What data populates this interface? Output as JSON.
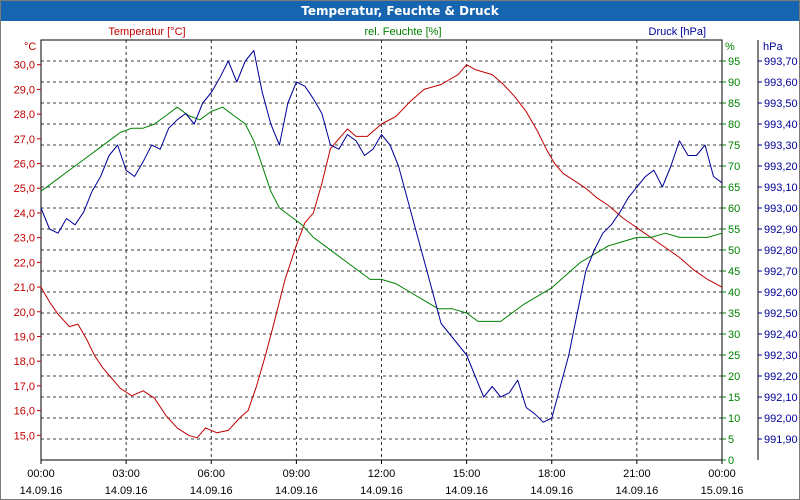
{
  "title": "Temperatur, Feuchte & Druck",
  "colors": {
    "title_bg": "#1565b0",
    "temperature": "#c00000",
    "humidity": "#008000",
    "pressure": "#000099",
    "grid": "#000000"
  },
  "chart_data": {
    "type": "line",
    "title": "Temperatur, Feuchte & Druck",
    "grid": true,
    "x_axis": {
      "range_hours": [
        0,
        24
      ],
      "ticks": [
        {
          "h": 0,
          "time": "00:00",
          "date": "14.09.16"
        },
        {
          "h": 3,
          "time": "03:00",
          "date": "14.09.16"
        },
        {
          "h": 6,
          "time": "06:00",
          "date": "14.09.16"
        },
        {
          "h": 9,
          "time": "09:00",
          "date": "14.09.16"
        },
        {
          "h": 12,
          "time": "12:00",
          "date": "14.09.16"
        },
        {
          "h": 15,
          "time": "15:00",
          "date": "14.09.16"
        },
        {
          "h": 18,
          "time": "18:00",
          "date": "14.09.16"
        },
        {
          "h": 21,
          "time": "21:00",
          "date": "14.09.16"
        },
        {
          "h": 24,
          "time": "00:00",
          "date": "15.09.16"
        }
      ]
    },
    "axes": {
      "temperature": {
        "label": "Temperatur [°C]",
        "unit": "°C",
        "range": [
          14.0,
          31.0
        ],
        "ticks": [
          "15,0",
          "16,0",
          "17,0",
          "18,0",
          "19,0",
          "20,0",
          "21,0",
          "22,0",
          "23,0",
          "24,0",
          "25,0",
          "26,0",
          "27,0",
          "28,0",
          "29,0",
          "30,0"
        ],
        "tick_values": [
          15,
          16,
          17,
          18,
          19,
          20,
          21,
          22,
          23,
          24,
          25,
          26,
          27,
          28,
          29,
          30
        ]
      },
      "humidity": {
        "label": "rel. Feuchte [%]",
        "unit": "%",
        "range": [
          0,
          100
        ],
        "ticks": [
          "0",
          "5",
          "10",
          "15",
          "20",
          "25",
          "30",
          "35",
          "40",
          "45",
          "50",
          "55",
          "60",
          "65",
          "70",
          "75",
          "80",
          "85",
          "90",
          "95"
        ],
        "tick_values": [
          0,
          5,
          10,
          15,
          20,
          25,
          30,
          35,
          40,
          45,
          50,
          55,
          60,
          65,
          70,
          75,
          80,
          85,
          90,
          95
        ]
      },
      "pressure": {
        "label": "Druck [hPa]",
        "unit": "hPa",
        "range": [
          991.8,
          993.8
        ],
        "ticks": [
          "991,90",
          "992,00",
          "992,10",
          "992,20",
          "992,30",
          "992,40",
          "992,50",
          "992,60",
          "992,70",
          "992,80",
          "992,90",
          "993,00",
          "993,10",
          "993,20",
          "993,30",
          "993,40",
          "993,50",
          "993,60",
          "993,70"
        ],
        "tick_values": [
          991.9,
          992.0,
          992.1,
          992.2,
          992.3,
          992.4,
          992.5,
          992.6,
          992.7,
          992.8,
          992.9,
          993.0,
          993.1,
          993.2,
          993.3,
          993.4,
          993.5,
          993.6,
          993.7
        ]
      }
    },
    "series": [
      {
        "name": "Temperatur [°C]",
        "axis": "temperature",
        "color": "#c00000",
        "x": [
          0,
          0.3,
          0.6,
          1.0,
          1.3,
          1.6,
          1.9,
          2.2,
          2.5,
          2.8,
          3.2,
          3.6,
          4.0,
          4.4,
          4.8,
          5.2,
          5.5,
          5.8,
          6.2,
          6.6,
          7.0,
          7.3,
          7.6,
          7.9,
          8.2,
          8.6,
          9.0,
          9.3,
          9.6,
          9.9,
          10.2,
          10.5,
          10.8,
          11.1,
          11.5,
          12.0,
          12.5,
          13.0,
          13.5,
          13.8,
          14.1,
          14.4,
          14.7,
          15.0,
          15.3,
          15.6,
          15.9,
          16.3,
          16.7,
          17.1,
          17.5,
          17.8,
          18.1,
          18.4,
          18.8,
          19.2,
          19.6,
          20.0,
          20.5,
          21.0,
          21.5,
          22.0,
          22.5,
          23.0,
          23.5,
          24.0
        ],
        "values": [
          21.0,
          20.4,
          19.9,
          19.4,
          19.5,
          18.9,
          18.2,
          17.7,
          17.3,
          16.9,
          16.6,
          16.8,
          16.5,
          15.8,
          15.3,
          15.0,
          14.9,
          15.3,
          15.1,
          15.2,
          15.7,
          16.0,
          17.0,
          18.2,
          19.5,
          21.3,
          22.7,
          23.6,
          24.0,
          25.2,
          26.6,
          27.0,
          27.4,
          27.1,
          27.1,
          27.6,
          27.9,
          28.5,
          29.0,
          29.1,
          29.2,
          29.4,
          29.6,
          30.0,
          29.8,
          29.7,
          29.6,
          29.2,
          28.7,
          28.1,
          27.3,
          26.6,
          26.0,
          25.6,
          25.3,
          25.0,
          24.6,
          24.3,
          23.8,
          23.4,
          23.0,
          22.6,
          22.2,
          21.7,
          21.3,
          21.0
        ]
      },
      {
        "name": "rel. Feuchte [%]",
        "axis": "humidity",
        "color": "#008000",
        "x": [
          0,
          0.4,
          0.8,
          1.2,
          1.6,
          2.0,
          2.4,
          2.8,
          3.2,
          3.6,
          4.0,
          4.4,
          4.8,
          5.2,
          5.6,
          6.0,
          6.4,
          6.8,
          7.2,
          7.5,
          7.8,
          8.1,
          8.4,
          8.8,
          9.2,
          9.6,
          10.0,
          10.4,
          10.8,
          11.2,
          11.6,
          12.0,
          12.5,
          13.0,
          13.5,
          14.0,
          14.5,
          15.0,
          15.4,
          15.8,
          16.2,
          16.6,
          17.0,
          17.5,
          18.0,
          18.5,
          19.0,
          19.5,
          20.0,
          20.5,
          21.0,
          21.5,
          22.0,
          22.5,
          23.0,
          23.5,
          24.0
        ],
        "values": [
          64,
          66,
          68,
          70,
          72,
          74,
          76,
          78,
          79,
          79,
          80,
          82,
          84,
          82,
          81,
          83,
          84,
          82,
          80,
          76,
          70,
          64,
          60,
          58,
          56,
          53,
          51,
          49,
          47,
          45,
          43,
          43,
          42,
          40,
          38,
          36,
          36,
          35,
          33,
          33,
          33,
          35,
          37,
          39,
          41,
          44,
          47,
          49,
          51,
          52,
          53,
          53,
          54,
          53,
          53,
          53,
          54
        ]
      },
      {
        "name": "Druck [hPa]",
        "axis": "pressure",
        "color": "#000099",
        "x": [
          0,
          0.3,
          0.6,
          0.9,
          1.2,
          1.5,
          1.8,
          2.1,
          2.4,
          2.7,
          3.0,
          3.3,
          3.6,
          3.9,
          4.2,
          4.5,
          4.8,
          5.1,
          5.4,
          5.7,
          6.0,
          6.3,
          6.6,
          6.9,
          7.2,
          7.5,
          7.8,
          8.1,
          8.4,
          8.7,
          9.0,
          9.3,
          9.6,
          9.9,
          10.2,
          10.5,
          10.8,
          11.1,
          11.4,
          11.7,
          12.0,
          12.3,
          12.6,
          12.9,
          13.2,
          13.5,
          13.8,
          14.1,
          14.4,
          14.7,
          15.0,
          15.3,
          15.6,
          15.9,
          16.2,
          16.5,
          16.8,
          17.1,
          17.4,
          17.7,
          18.0,
          18.3,
          18.6,
          18.9,
          19.2,
          19.5,
          19.8,
          20.1,
          20.4,
          20.7,
          21.0,
          21.3,
          21.6,
          21.9,
          22.2,
          22.5,
          22.8,
          23.1,
          23.4,
          23.7,
          24.0
        ],
        "values": [
          993.0,
          992.9,
          992.88,
          992.95,
          992.92,
          992.98,
          993.08,
          993.15,
          993.25,
          993.3,
          993.18,
          993.15,
          993.22,
          993.3,
          993.28,
          993.38,
          993.42,
          993.45,
          993.4,
          993.5,
          993.55,
          993.62,
          993.7,
          993.6,
          993.7,
          993.75,
          993.55,
          993.4,
          993.3,
          993.5,
          993.6,
          993.58,
          993.52,
          993.45,
          993.3,
          993.28,
          993.35,
          993.32,
          993.25,
          993.28,
          993.35,
          993.3,
          993.2,
          993.05,
          992.9,
          992.75,
          992.6,
          992.45,
          992.4,
          992.35,
          992.3,
          992.2,
          992.1,
          992.15,
          992.1,
          992.12,
          992.18,
          992.05,
          992.02,
          991.98,
          992.0,
          992.15,
          992.3,
          992.5,
          992.7,
          992.8,
          992.88,
          992.92,
          992.98,
          993.05,
          993.1,
          993.15,
          993.18,
          993.1,
          993.2,
          993.32,
          993.25,
          993.25,
          993.3,
          993.15,
          993.12
        ]
      }
    ]
  }
}
